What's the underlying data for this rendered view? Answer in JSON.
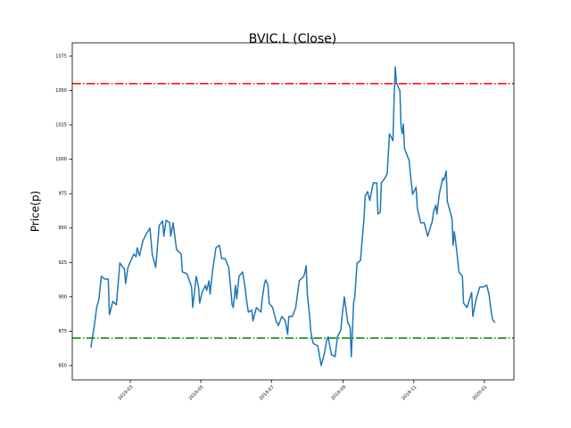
{
  "chart_data": {
    "type": "line",
    "title": "BVIC.L (Close)",
    "y_label": "Price(p)",
    "x": [
      25,
      28,
      30,
      32,
      34,
      37,
      40,
      41,
      44,
      47,
      50,
      54,
      55,
      57,
      60,
      62,
      64,
      65,
      67,
      70,
      73,
      76,
      78,
      81,
      82,
      84,
      87,
      88,
      90,
      93,
      94,
      96,
      99,
      103,
      104,
      108,
      112,
      113,
      116,
      118,
      119,
      121,
      124,
      125,
      127,
      128,
      130,
      133,
      136,
      138,
      141,
      144,
      145,
      147,
      148,
      150,
      151,
      153,
      156,
      158,
      159,
      161,
      164,
      165,
      168,
      172,
      173,
      175,
      176,
      178,
      179,
      182,
      185,
      187,
      190,
      193,
      195,
      196,
      199,
      202,
      205,
      209,
      210,
      211,
      212,
      214,
      215,
      217,
      221,
      222,
      224,
      225,
      227,
      229,
      230,
      232,
      233,
      236,
      238,
      241,
      242,
      244,
      247,
      249,
      250,
      252,
      253,
      255,
      258,
      259,
      261,
      262,
      264,
      266,
      267,
      269,
      272,
      273,
      275,
      276,
      279,
      281,
      283,
      286,
      287,
      288,
      289,
      292,
      293,
      294,
      295,
      296,
      300,
      301,
      303,
      306,
      307,
      310,
      313,
      316,
      320,
      321,
      323,
      324,
      326,
      329,
      330,
      332,
      333,
      337,
      338,
      339,
      341,
      343,
      346,
      347,
      350,
      354,
      355,
      358,
      361,
      364,
      367,
      369,
      371,
      372,
      374
    ],
    "series": [
      {
        "color": "#1f77b4",
        "values": [
          863.0,
          879.2,
          892.2,
          898.6,
          914.9,
          912.9,
          912.9,
          887.0,
          896.7,
          894.1,
          924.6,
          920.0,
          909.7,
          921.3,
          927.2,
          931.1,
          929.1,
          935.6,
          929.8,
          940.8,
          946.0,
          949.9,
          931.1,
          921.3,
          931.1,
          951.8,
          955.1,
          944.0,
          955.7,
          953.8,
          944.0,
          953.8,
          934.3,
          931.1,
          918.1,
          916.8,
          907.1,
          892.2,
          914.9,
          907.1,
          895.4,
          903.2,
          908.4,
          904.5,
          911.6,
          901.9,
          918.1,
          935.6,
          937.5,
          927.8,
          927.8,
          921.3,
          913.6,
          894.1,
          892.2,
          908.4,
          898.6,
          914.9,
          918.1,
          908.4,
          900.6,
          888.9,
          890.2,
          882.4,
          892.2,
          888.9,
          898.6,
          909.7,
          912.3,
          908.4,
          895.4,
          892.2,
          882.4,
          879.2,
          885.7,
          882.4,
          872.7,
          885.7,
          885.7,
          892.2,
          911.6,
          914.9,
          918.1,
          922.6,
          901.9,
          885.7,
          874.6,
          866.2,
          864.3,
          859.7,
          850.0,
          853.2,
          859.7,
          869.5,
          870.8,
          861.7,
          857.8,
          856.5,
          870.8,
          875.9,
          885.7,
          899.9,
          881.1,
          877.9,
          856.5,
          895.4,
          899.9,
          924.6,
          926.5,
          937.5,
          957.0,
          973.2,
          976.5,
          970.0,
          974.5,
          982.9,
          982.9,
          960.2,
          961.5,
          982.9,
          986.2,
          989.4,
          1018.6,
          1013.4,
          1044.6,
          1067.2,
          1055.6,
          1049.7,
          1023.8,
          1018.6,
          1025.7,
          1007.6,
          999.2,
          989.4,
          974.5,
          979.7,
          964.8,
          953.8,
          953.8,
          944.0,
          955.1,
          961.5,
          966.7,
          960.2,
          974.5,
          986.2,
          984.9,
          991.4,
          969.3,
          957.0,
          937.5,
          947.3,
          934.3,
          918.1,
          914.9,
          895.4,
          892.2,
          903.2,
          885.7,
          898.6,
          907.1,
          907.1,
          908.4,
          901.9,
          888.9,
          883.7,
          881.1
        ]
      }
    ],
    "hlines": [
      {
        "value": 1055,
        "color": "#ff0000"
      },
      {
        "value": 870,
        "color": "#008000"
      }
    ],
    "xlim": [
      8.9,
      390.5
    ],
    "xticks": [
      {
        "value": 59,
        "label": "2019-03"
      },
      {
        "value": 120,
        "label": "2019-05"
      },
      {
        "value": 181,
        "label": "2019-07"
      },
      {
        "value": 243,
        "label": "2019-09"
      },
      {
        "value": 304,
        "label": "2019-11"
      },
      {
        "value": 365,
        "label": "2020-01"
      }
    ],
    "ylim": [
      839.6,
      1084.7
    ],
    "yticks": [
      850,
      875,
      900,
      925,
      950,
      975,
      1000,
      1025,
      1050,
      1075
    ],
    "grid": false
  }
}
